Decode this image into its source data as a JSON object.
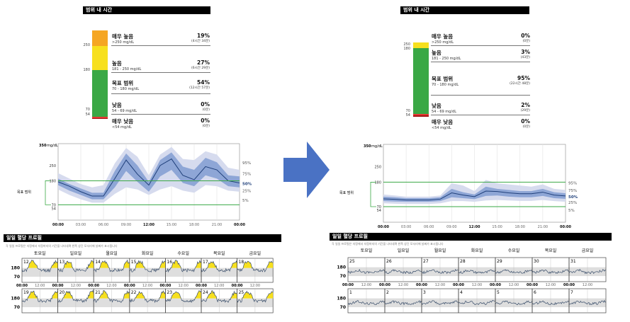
{
  "left": {
    "tir_header": "범위 내 시간",
    "bar_ticks": [
      "250",
      "180",
      "70",
      "54"
    ],
    "categories": [
      {
        "name": "매우 높음",
        "range": ">250 mg/dL",
        "pct": "19%",
        "time": "(4시간 34분)"
      },
      {
        "name": "높음",
        "range": "181 - 250 mg/dL",
        "pct": "27%",
        "time": "(6시간 29분)"
      },
      {
        "name": "목표 범위",
        "range": "70 - 180 mg/dL",
        "pct": "54%",
        "time": "(12시간 57분)"
      },
      {
        "name": "낮음",
        "range": "54 - 69 mg/dL",
        "pct": "0%",
        "time": "(0분)"
      },
      {
        "name": "매우 낮음",
        "range": "<54 mg/dL",
        "pct": "0%",
        "time": "(0분)"
      }
    ],
    "agp": {
      "y_top": "350",
      "y_unit": "mg/dL",
      "y_ticks": [
        "250",
        "180",
        "70",
        "54"
      ],
      "target_label": "목표 범위",
      "x_ticks": [
        "00:00",
        "03:00",
        "06:00",
        "09:00",
        "12:00",
        "15:00",
        "18:00",
        "21:00",
        "00:00"
      ],
      "percentile_labels": [
        "95%",
        "75%",
        "50%",
        "25%",
        "5%"
      ]
    },
    "daily": {
      "header": "일일 혈당 프로필",
      "subtitle": "각 일일 프로필은 자정에서 자정까지의 기간을 나타내며 왼쪽 상단 모서리에 날짜가 표시됩니다",
      "day_names": [
        "토요일",
        "일요일",
        "월요일",
        "화요일",
        "수요일",
        "목요일",
        "금요일"
      ],
      "week1_dates": [
        "12",
        "13",
        "14",
        "15",
        "16",
        "17",
        "18"
      ],
      "week2_dates": [
        "19",
        "20",
        "21",
        "22",
        "23",
        "24",
        "25"
      ],
      "y_labels": [
        "180",
        "70"
      ],
      "x_labels": [
        "00:00",
        "12:00"
      ]
    }
  },
  "right": {
    "tir_header": "범위 내 시간",
    "bar_ticks": [
      "250",
      "180",
      "70",
      "54"
    ],
    "categories": [
      {
        "name": "매우 높음",
        "range": ">250 mg/dL",
        "pct": "0%",
        "time": "(0분)"
      },
      {
        "name": "높음",
        "range": "181 - 250 mg/dL",
        "pct": "3%",
        "time": "(43분)"
      },
      {
        "name": "목표 범위",
        "range": "70 - 180 mg/dL",
        "pct": "95%",
        "time": "(22시간 48분)"
      },
      {
        "name": "낮음",
        "range": "54 - 69 mg/dL",
        "pct": "2%",
        "time": "(29분)"
      },
      {
        "name": "매우 낮음",
        "range": "<54 mg/dL",
        "pct": "0%",
        "time": "(0분)"
      }
    ],
    "agp": {
      "y_top": "350",
      "y_unit": "mg/dL",
      "y_ticks": [
        "250",
        "180",
        "70",
        "54"
      ],
      "target_label": "목표 범위",
      "x_ticks": [
        "00:00",
        "03:00",
        "06:00",
        "09:00",
        "12:00",
        "15:00",
        "18:00",
        "21:00",
        "00:00"
      ],
      "percentile_labels": [
        "95%",
        "75%",
        "50%",
        "25%",
        "5%"
      ]
    },
    "daily": {
      "header": "일일 혈당 프로필",
      "subtitle": "각 일일 프로필은 자정에서 자정까지의 기간을 나타내며 왼쪽 상단 모서리에 날짜가 표시됩니다",
      "day_names": [
        "토요일",
        "일요일",
        "월요일",
        "화요일",
        "수요일",
        "목요일",
        "금요일"
      ],
      "week1_dates": [
        "25",
        "26",
        "27",
        "28",
        "29",
        "30",
        "31"
      ],
      "week2_dates": [
        "1",
        "2",
        "3",
        "4",
        "5",
        "6",
        "7"
      ],
      "y_labels": [
        "180",
        "70"
      ],
      "x_labels": [
        "00:00",
        "12:00"
      ]
    }
  },
  "colors": {
    "very_high": "#f5a623",
    "high": "#f7e01e",
    "target": "#3aa845",
    "low": "#e53935",
    "very_low": "#a31414",
    "band_outer": "#d6dbee",
    "band_inner": "#8ea6d6",
    "median": "#1f3f7a",
    "target_line": "#3aa845",
    "arrow": "#4a72c4"
  },
  "chart_data": [
    {
      "type": "area",
      "panel": "left",
      "title": "",
      "ylabel": "mg/dL",
      "ylim": [
        0,
        350
      ],
      "target_range": [
        70,
        180
      ],
      "x": [
        0,
        1.5,
        3,
        4.5,
        6,
        7.5,
        9,
        10.5,
        12,
        13.5,
        15,
        16.5,
        18,
        19.5,
        21,
        22.5,
        24
      ],
      "series": [
        {
          "name": "95%",
          "values": [
            215,
            190,
            165,
            150,
            160,
            260,
            330,
            290,
            205,
            300,
            335,
            280,
            275,
            315,
            300,
            240,
            230
          ]
        },
        {
          "name": "75%",
          "values": [
            190,
            165,
            145,
            125,
            125,
            225,
            305,
            250,
            175,
            275,
            310,
            245,
            230,
            285,
            265,
            205,
            200
          ]
        },
        {
          "name": "50%",
          "values": [
            175,
            155,
            130,
            110,
            110,
            190,
            275,
            210,
            160,
            250,
            280,
            205,
            185,
            245,
            230,
            180,
            170
          ]
        },
        {
          "name": "25%",
          "values": [
            160,
            135,
            115,
            95,
            95,
            150,
            225,
            175,
            130,
            200,
            230,
            170,
            155,
            205,
            190,
            155,
            150
          ]
        },
        {
          "name": "5%",
          "values": [
            140,
            115,
            95,
            80,
            80,
            120,
            150,
            140,
            115,
            140,
            155,
            135,
            125,
            160,
            155,
            135,
            130
          ]
        }
      ]
    },
    {
      "type": "area",
      "panel": "right",
      "title": "",
      "ylabel": "mg/dL",
      "ylim": [
        0,
        350
      ],
      "target_range": [
        70,
        180
      ],
      "x": [
        0,
        1.5,
        3,
        4.5,
        6,
        7.5,
        9,
        10.5,
        12,
        13.5,
        15,
        16.5,
        18,
        19.5,
        21,
        22.5,
        24
      ],
      "series": [
        {
          "name": "95%",
          "values": [
            125,
            120,
            115,
            115,
            115,
            120,
            175,
            165,
            140,
            190,
            175,
            170,
            165,
            160,
            170,
            150,
            145
          ]
        },
        {
          "name": "75%",
          "values": [
            115,
            112,
            108,
            108,
            108,
            112,
            150,
            135,
            125,
            160,
            150,
            145,
            140,
            140,
            150,
            135,
            130
          ]
        },
        {
          "name": "50%",
          "values": [
            105,
            103,
            100,
            100,
            100,
            104,
            132,
            122,
            115,
            140,
            138,
            132,
            128,
            128,
            135,
            122,
            118
          ]
        },
        {
          "name": "25%",
          "values": [
            95,
            93,
            92,
            92,
            92,
            95,
            112,
            108,
            104,
            118,
            120,
            115,
            112,
            112,
            118,
            108,
            105
          ]
        },
        {
          "name": "5%",
          "values": [
            85,
            83,
            82,
            82,
            82,
            85,
            95,
            95,
            92,
            98,
            100,
            98,
            96,
            96,
            100,
            95,
            92
          ]
        }
      ]
    }
  ]
}
